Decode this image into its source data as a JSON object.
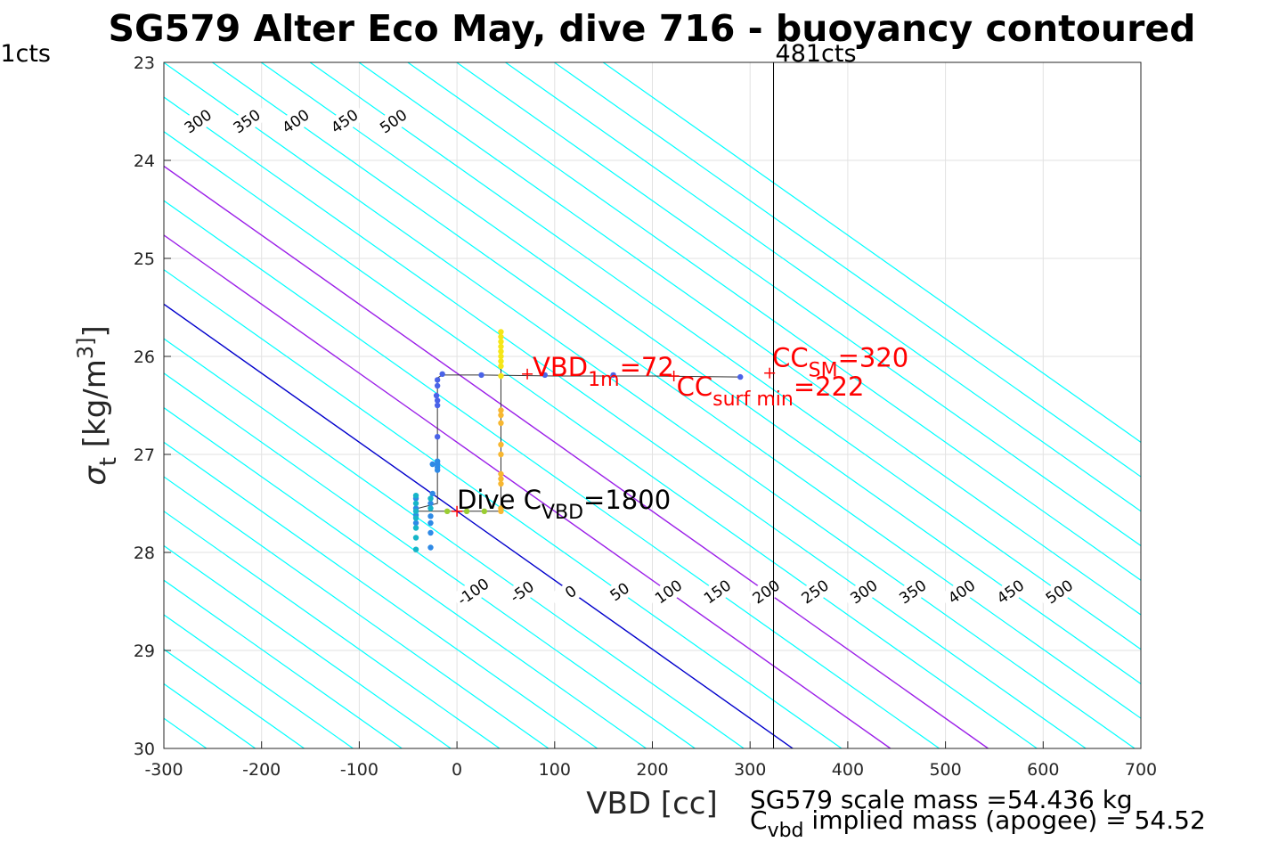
{
  "chart_data": {
    "type": "scatter",
    "title": "SG579 Alter Eco May, dive 716 - buoyancy contoured",
    "xlabel": "VBD [cc]",
    "ylabel": "σ t [kg/m 3]",
    "xlim": [
      -300,
      700
    ],
    "ylim": [
      30,
      23
    ],
    "y_reversed": true,
    "grid": true,
    "xticks": [
      "-300",
      "-200",
      "-100",
      "0",
      "100",
      "200",
      "300",
      "400",
      "500",
      "600",
      "700"
    ],
    "yticks": [
      "23",
      "24",
      "25",
      "26",
      "27",
      "28",
      "29",
      "30"
    ],
    "contours": {
      "levels_upper": [
        "-350",
        "-300",
        "-250",
        "-200",
        "-150",
        "-100",
        "-50",
        "0",
        "50",
        "100",
        "150",
        "200",
        "250",
        "300",
        "350",
        "400",
        "450",
        "500"
      ],
      "levels_lower": [
        "-100",
        "-50",
        "0",
        "50",
        "100",
        "150",
        "200",
        "250",
        "300",
        "350",
        "400",
        "450",
        "500"
      ],
      "color": "#00ffff",
      "zero_color": "#0000cc",
      "highlight_color": "#9b1fe8"
    },
    "vertical_lines": [
      {
        "label": "481cts",
        "x": 324,
        "color": "#000000"
      },
      {
        "label": "1cts",
        "x": -595,
        "color": "#000000"
      }
    ],
    "annotations": [
      {
        "text": "VBD",
        "sub": "1m",
        "value": "=72",
        "x": 72,
        "y": 26.18,
        "color": "#ff0000"
      },
      {
        "text": "CC",
        "sub": "SM",
        "value": "=320",
        "x": 320,
        "y": 26.17,
        "color": "#ff0000"
      },
      {
        "text": "CC",
        "sub": "surf min",
        "value": "=222",
        "x": 222,
        "y": 26.2,
        "color": "#ff0000"
      },
      {
        "text": "Dive C",
        "sub": "VBD",
        "value": "=1800",
        "x": 0,
        "y": 27.58,
        "color": "#000000"
      }
    ],
    "footer": {
      "line1": "SG579 scale mass =54.436 kg",
      "line2_pre": "C",
      "line2_sub": "vbd",
      "line2_post": " implied mass (apogee) = 54.52"
    },
    "trace": [
      [
        290,
        26.21
      ],
      [
        200,
        26.2
      ],
      [
        100,
        26.2
      ],
      [
        25,
        26.19
      ],
      [
        -15,
        26.19
      ],
      [
        -20,
        26.22
      ],
      [
        -20,
        27.5
      ],
      [
        -40,
        27.55
      ],
      [
        -40,
        27.58
      ],
      [
        0,
        27.58
      ],
      [
        45,
        27.58
      ],
      [
        45,
        26.2
      ],
      [
        45,
        25.75
      ]
    ],
    "series": [
      {
        "name": "",
        "color": "#4a63e8",
        "points": [
          [
            290,
            26.21
          ],
          [
            160,
            26.19
          ],
          [
            90,
            26.19
          ],
          [
            25,
            26.19
          ],
          [
            -15,
            26.18
          ],
          [
            -20,
            26.24
          ],
          [
            -20,
            26.3
          ],
          [
            -21,
            26.4
          ],
          [
            -20,
            26.45
          ],
          [
            -20,
            26.5
          ],
          [
            -20,
            26.82
          ]
        ]
      },
      {
        "name": "",
        "color": "#2f8ae6",
        "points": [
          [
            -20,
            27.07
          ],
          [
            -20,
            27.1
          ],
          [
            -20,
            27.13
          ],
          [
            -20,
            27.16
          ],
          [
            -25,
            27.1
          ],
          [
            -25,
            27.4
          ],
          [
            -27,
            27.5
          ],
          [
            -27,
            27.63
          ],
          [
            -27,
            27.7
          ],
          [
            -27,
            27.8
          ],
          [
            -27,
            27.95
          ],
          [
            -42,
            27.45
          ],
          [
            -42,
            27.55
          ],
          [
            -42,
            27.62
          ],
          [
            -42,
            27.7
          ]
        ]
      },
      {
        "name": "",
        "color": "#16b5c8",
        "points": [
          [
            -42,
            27.42
          ],
          [
            -42,
            27.5
          ],
          [
            -42,
            27.58
          ],
          [
            -42,
            27.65
          ],
          [
            -42,
            27.75
          ],
          [
            -42,
            27.85
          ],
          [
            -42,
            27.97
          ],
          [
            -27,
            27.45
          ],
          [
            -27,
            27.55
          ]
        ]
      },
      {
        "name": "",
        "color": "#9acd32",
        "points": [
          [
            -10,
            27.58
          ],
          [
            10,
            27.58
          ],
          [
            28,
            27.58
          ]
        ]
      },
      {
        "name": "",
        "color": "#f7b731",
        "points": [
          [
            45,
            26.55
          ],
          [
            45,
            26.6
          ],
          [
            45,
            26.68
          ],
          [
            45,
            26.9
          ],
          [
            45,
            27.0
          ],
          [
            45,
            27.2
          ],
          [
            45,
            27.25
          ],
          [
            45,
            27.3
          ],
          [
            45,
            27.55
          ],
          [
            45,
            27.58
          ]
        ]
      },
      {
        "name": "",
        "color": "#f5e616",
        "points": [
          [
            45,
            25.75
          ],
          [
            45,
            25.8
          ],
          [
            45,
            25.85
          ],
          [
            45,
            25.9
          ],
          [
            45,
            25.95
          ],
          [
            45,
            26.0
          ],
          [
            45,
            26.05
          ],
          [
            45,
            26.1
          ],
          [
            45,
            26.2
          ]
        ]
      }
    ],
    "markers": [
      {
        "x": 72,
        "y": 26.18,
        "color": "#ff0000"
      },
      {
        "x": 222,
        "y": 26.2,
        "color": "#ff0000"
      },
      {
        "x": 320,
        "y": 26.17,
        "color": "#ff0000"
      },
      {
        "x": 0,
        "y": 27.58,
        "color": "#ff0000"
      }
    ]
  }
}
